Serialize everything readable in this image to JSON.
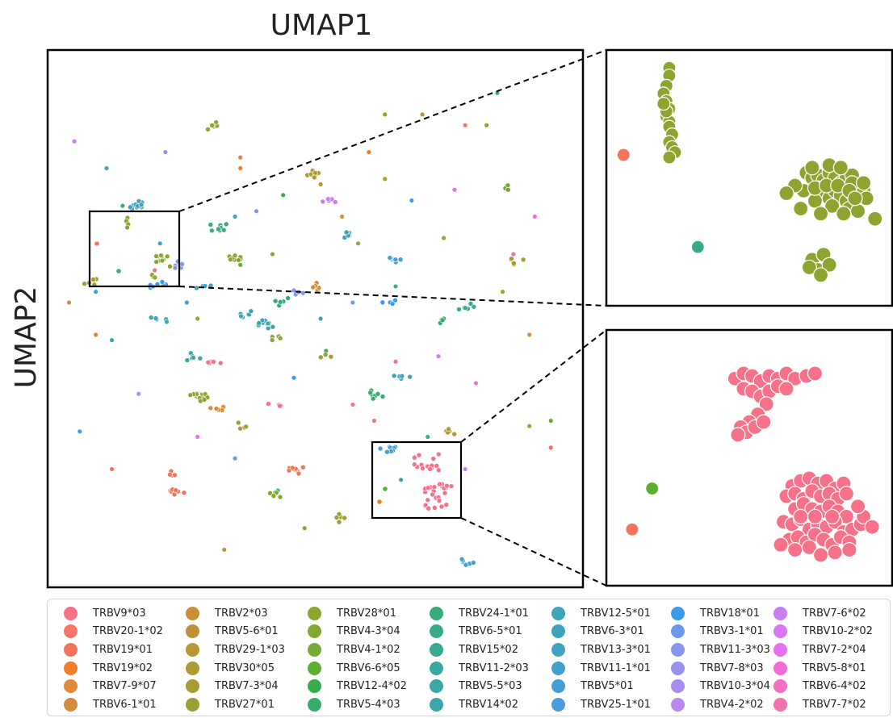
{
  "chart_data": {
    "type": "scatter",
    "xlabel": "UMAP1",
    "ylabel": "UMAP2",
    "grid": false,
    "legend_placement": "bottom",
    "panels": [
      "main",
      "zoom-top",
      "zoom-bottom"
    ],
    "series": [
      {
        "name": "TRBV9*03",
        "color": "#f77189"
      },
      {
        "name": "TRBV20-1*02",
        "color": "#f7746a"
      },
      {
        "name": "TRBV19*01",
        "color": "#f5735a"
      },
      {
        "name": "TRBV19*02",
        "color": "#ef7d2a"
      },
      {
        "name": "TRBV7-9*07",
        "color": "#e0893a"
      },
      {
        "name": "TRBV6-1*01",
        "color": "#d28c3c"
      },
      {
        "name": "TRBV2*03",
        "color": "#cb8d38"
      },
      {
        "name": "TRBV5-6*01",
        "color": "#bf9136"
      },
      {
        "name": "TRBV29-1*03",
        "color": "#b89634"
      },
      {
        "name": "TRBV30*05",
        "color": "#ad9a33"
      },
      {
        "name": "TRBV7-3*04",
        "color": "#a49d32"
      },
      {
        "name": "TRBV27*01",
        "color": "#9aa132"
      },
      {
        "name": "TRBV28*01",
        "color": "#8ea431"
      },
      {
        "name": "TRBV4-3*04",
        "color": "#82a832"
      },
      {
        "name": "TRBV4-1*02",
        "color": "#73ab33"
      },
      {
        "name": "TRBV6-6*05",
        "color": "#5daf34"
      },
      {
        "name": "TRBV12-4*02",
        "color": "#35ae4a"
      },
      {
        "name": "TRBV5-4*03",
        "color": "#36ad6a"
      },
      {
        "name": "TRBV24-1*01",
        "color": "#38ab7c"
      },
      {
        "name": "TRBV6-5*01",
        "color": "#39aa89"
      },
      {
        "name": "TRBV15*02",
        "color": "#3aa994"
      },
      {
        "name": "TRBV11-2*03",
        "color": "#3ba89d"
      },
      {
        "name": "TRBV5-5*03",
        "color": "#3ca7a5"
      },
      {
        "name": "TRBV14*02",
        "color": "#3da6ad"
      },
      {
        "name": "TRBV12-5*01",
        "color": "#3ea5b4"
      },
      {
        "name": "TRBV6-3*01",
        "color": "#3fa4bb"
      },
      {
        "name": "TRBV13-3*01",
        "color": "#40a3c2"
      },
      {
        "name": "TRBV11-1*01",
        "color": "#42a1ca"
      },
      {
        "name": "TRBV5*01",
        "color": "#459fd3"
      },
      {
        "name": "TRBV25-1*01",
        "color": "#499cdf"
      },
      {
        "name": "TRBV18*01",
        "color": "#3b9be8"
      },
      {
        "name": "TRBV3-1*01",
        "color": "#6e99ea"
      },
      {
        "name": "TRBV11-3*03",
        "color": "#8895ec"
      },
      {
        "name": "TRBV7-8*03",
        "color": "#9b90ee"
      },
      {
        "name": "TRBV10-3*04",
        "color": "#a98cef"
      },
      {
        "name": "TRBV4-2*02",
        "color": "#b887f0"
      },
      {
        "name": "TRBV7-6*02",
        "color": "#c77ff2"
      },
      {
        "name": "TRBV10-2*02",
        "color": "#db76f3"
      },
      {
        "name": "TRBV7-2*04",
        "color": "#e86ff0"
      },
      {
        "name": "TRBV5-8*01",
        "color": "#f16bd9"
      },
      {
        "name": "TRBV6-4*02",
        "color": "#f46ec4"
      },
      {
        "name": "TRBV7-7*02",
        "color": "#f570ad"
      }
    ],
    "points": [
      [
        33,
        93,
        8
      ],
      [
        90,
        70,
        9
      ],
      [
        82,
        14,
        12
      ],
      [
        63,
        12,
        13
      ],
      [
        68,
        28,
        30
      ],
      [
        74,
        35,
        11
      ],
      [
        63,
        24,
        10
      ],
      [
        36,
        20,
        2
      ],
      [
        36,
        22,
        3
      ],
      [
        66,
        80,
        22
      ],
      [
        6,
        71,
        29
      ],
      [
        5,
        17,
        36
      ],
      [
        21,
        36,
        26
      ],
      [
        20,
        41,
        1
      ],
      [
        12,
        54,
        23
      ],
      [
        9,
        53,
        6
      ],
      [
        36,
        40,
        15
      ],
      [
        28,
        50,
        10
      ],
      [
        51,
        50,
        24
      ],
      [
        52,
        56,
        17
      ],
      [
        65,
        58,
        0
      ],
      [
        71,
        72,
        20
      ],
      [
        94,
        69,
        15
      ],
      [
        94,
        74,
        2
      ],
      [
        91,
        31,
        39
      ],
      [
        87,
        38,
        41
      ],
      [
        55,
        31,
        5
      ],
      [
        57,
        66,
        0
      ],
      [
        61,
        69,
        2
      ],
      [
        35,
        76,
        31
      ],
      [
        12,
        78,
        2
      ],
      [
        43,
        82,
        19
      ],
      [
        44,
        27,
        16
      ],
      [
        28,
        72,
        37
      ],
      [
        78,
        78,
        36
      ],
      [
        48,
        89,
        14
      ],
      [
        73,
        57,
        37
      ],
      [
        80,
        62,
        40
      ],
      [
        70,
        12,
        8
      ],
      [
        39,
        30,
        32
      ],
      [
        85,
        45,
        11
      ],
      [
        17,
        64,
        34
      ],
      [
        26,
        47,
        28
      ],
      [
        4,
        47,
        5
      ],
      [
        14,
        29,
        18
      ],
      [
        57,
        47,
        31
      ],
      [
        65,
        44,
        21
      ],
      [
        60,
        19,
        3
      ],
      [
        76,
        26,
        38
      ],
      [
        90,
        53,
        4
      ],
      [
        42,
        38,
        13
      ],
      [
        46,
        61,
        30
      ],
      [
        58,
        36,
        11
      ],
      [
        35,
        31,
        27
      ],
      [
        22,
        19,
        33
      ],
      [
        11,
        22,
        25
      ],
      [
        9,
        45,
        26
      ],
      [
        78,
        14,
        1
      ],
      [
        84,
        8,
        17
      ],
      [
        51,
        25,
        9
      ]
    ],
    "clusters": [
      [
        24,
        82,
        2,
        7
      ],
      [
        46,
        78,
        2,
        10
      ],
      [
        78,
        95,
        27,
        8
      ],
      [
        23,
        79,
        2,
        4
      ],
      [
        50,
        23,
        9,
        8
      ],
      [
        42,
        54,
        12,
        4
      ],
      [
        61,
        64,
        17,
        7
      ],
      [
        41,
        51,
        23,
        12
      ],
      [
        28,
        64,
        12,
        11
      ],
      [
        27,
        57,
        22,
        6
      ],
      [
        21,
        50,
        26,
        5
      ],
      [
        21,
        44,
        30,
        7
      ],
      [
        35,
        39,
        12,
        8
      ],
      [
        64,
        74,
        28,
        10
      ],
      [
        29,
        65,
        12,
        5
      ],
      [
        31,
        58,
        0,
        5
      ],
      [
        75,
        71,
        9,
        8
      ],
      [
        32,
        33,
        18,
        8
      ],
      [
        24,
        40,
        32,
        6
      ],
      [
        17,
        29,
        25,
        12
      ],
      [
        31,
        14,
        12,
        6
      ],
      [
        65,
        39,
        28,
        7
      ],
      [
        78,
        48,
        20,
        6
      ],
      [
        32,
        67,
        4,
        5
      ],
      [
        55,
        87,
        11,
        7
      ],
      [
        43,
        66,
        0,
        4
      ],
      [
        37,
        49,
        24,
        6
      ],
      [
        53,
        28,
        36,
        5
      ],
      [
        50,
        44,
        6,
        6
      ],
      [
        52,
        57,
        11,
        4
      ],
      [
        29,
        44,
        27,
        5
      ],
      [
        8,
        43,
        10,
        5
      ],
      [
        47,
        45,
        32,
        4
      ],
      [
        87,
        39,
        10,
        5
      ],
      [
        86,
        26,
        14,
        4
      ],
      [
        56,
        34,
        24,
        6
      ],
      [
        36,
        70,
        10,
        4
      ],
      [
        64,
        47,
        30,
        5
      ],
      [
        66,
        61,
        24,
        5
      ],
      [
        74,
        50,
        17,
        4
      ],
      [
        44,
        47,
        18,
        5
      ],
      [
        42,
        83,
        13,
        5
      ]
    ],
    "zoom_top": {
      "green_arc": [
        [
          22,
          7
        ],
        [
          22,
          10
        ],
        [
          21,
          14
        ],
        [
          20,
          17
        ],
        [
          21,
          20
        ],
        [
          22,
          23
        ],
        [
          21,
          26
        ],
        [
          22,
          28
        ],
        [
          22,
          30
        ],
        [
          23,
          33
        ],
        [
          22,
          36
        ],
        [
          23,
          38
        ],
        [
          24,
          40
        ],
        [
          22,
          42
        ],
        [
          21,
          24
        ],
        [
          20,
          21
        ]
      ],
      "green_blob": [
        [
          70,
          48
        ],
        [
          72,
          50
        ],
        [
          74,
          49
        ],
        [
          76,
          51
        ],
        [
          78,
          48
        ],
        [
          80,
          50
        ],
        [
          82,
          52
        ],
        [
          84,
          50
        ],
        [
          86,
          49
        ],
        [
          74,
          54
        ],
        [
          76,
          56
        ],
        [
          78,
          58
        ],
        [
          80,
          55
        ],
        [
          82,
          57
        ],
        [
          84,
          59
        ],
        [
          86,
          56
        ],
        [
          88,
          54
        ],
        [
          90,
          55
        ],
        [
          72,
          46
        ],
        [
          78,
          45
        ],
        [
          82,
          46
        ],
        [
          86,
          52
        ],
        [
          90,
          52
        ],
        [
          91,
          58
        ],
        [
          85,
          62
        ],
        [
          79,
          61
        ],
        [
          73,
          59
        ],
        [
          69,
          55
        ],
        [
          66,
          53
        ],
        [
          63,
          56
        ],
        [
          68,
          62
        ],
        [
          75,
          64
        ],
        [
          83,
          64
        ],
        [
          88,
          63
        ],
        [
          94,
          66
        ],
        [
          73,
          54
        ],
        [
          77,
          53
        ],
        [
          81,
          53
        ],
        [
          85,
          55
        ],
        [
          87,
          58
        ]
      ],
      "green_bottom": [
        [
          72,
          82
        ],
        [
          76,
          80
        ],
        [
          74,
          86
        ],
        [
          78,
          84
        ],
        [
          71,
          85
        ],
        [
          75,
          88
        ]
      ],
      "orange": [
        [
          6,
          41
        ]
      ],
      "teal": [
        [
          32,
          77
        ]
      ]
    },
    "zoom_bottom": {
      "salmon_top": [
        [
          45,
          19
        ],
        [
          48,
          17
        ],
        [
          51,
          18
        ],
        [
          54,
          20
        ],
        [
          57,
          18
        ],
        [
          60,
          19
        ],
        [
          63,
          17
        ],
        [
          66,
          19
        ],
        [
          70,
          18
        ],
        [
          73,
          17
        ],
        [
          48,
          23
        ],
        [
          51,
          24
        ],
        [
          54,
          26
        ],
        [
          57,
          24
        ],
        [
          60,
          22
        ],
        [
          63,
          23
        ],
        [
          56,
          29
        ],
        [
          53,
          33
        ],
        [
          50,
          36
        ],
        [
          47,
          38
        ],
        [
          49,
          40
        ],
        [
          52,
          38
        ],
        [
          55,
          36
        ],
        [
          46,
          41
        ]
      ],
      "salmon_bottom": [
        [
          65,
          61
        ],
        [
          68,
          59
        ],
        [
          71,
          58
        ],
        [
          74,
          60
        ],
        [
          77,
          59
        ],
        [
          80,
          62
        ],
        [
          83,
          60
        ],
        [
          63,
          65
        ],
        [
          66,
          64
        ],
        [
          69,
          66
        ],
        [
          72,
          63
        ],
        [
          75,
          65
        ],
        [
          78,
          64
        ],
        [
          81,
          66
        ],
        [
          84,
          64
        ],
        [
          66,
          70
        ],
        [
          69,
          68
        ],
        [
          72,
          70
        ],
        [
          75,
          71
        ],
        [
          78,
          69
        ],
        [
          81,
          71
        ],
        [
          84,
          73
        ],
        [
          62,
          75
        ],
        [
          65,
          76
        ],
        [
          68,
          74
        ],
        [
          71,
          78
        ],
        [
          74,
          76
        ],
        [
          77,
          77
        ],
        [
          80,
          75
        ],
        [
          83,
          79
        ],
        [
          86,
          78
        ],
        [
          89,
          76
        ],
        [
          64,
          82
        ],
        [
          67,
          81
        ],
        [
          70,
          83
        ],
        [
          73,
          80
        ],
        [
          76,
          82
        ],
        [
          79,
          84
        ],
        [
          82,
          81
        ],
        [
          85,
          83
        ],
        [
          61,
          84
        ],
        [
          66,
          86
        ],
        [
          71,
          85
        ],
        [
          75,
          88
        ],
        [
          80,
          87
        ],
        [
          85,
          86
        ],
        [
          90,
          73
        ],
        [
          93,
          77
        ],
        [
          88,
          69
        ],
        [
          68,
          73
        ],
        [
          73,
          73
        ],
        [
          79,
          73
        ]
      ],
      "green": [
        [
          16,
          62
        ]
      ],
      "orange": [
        [
          9,
          78
        ]
      ]
    }
  }
}
